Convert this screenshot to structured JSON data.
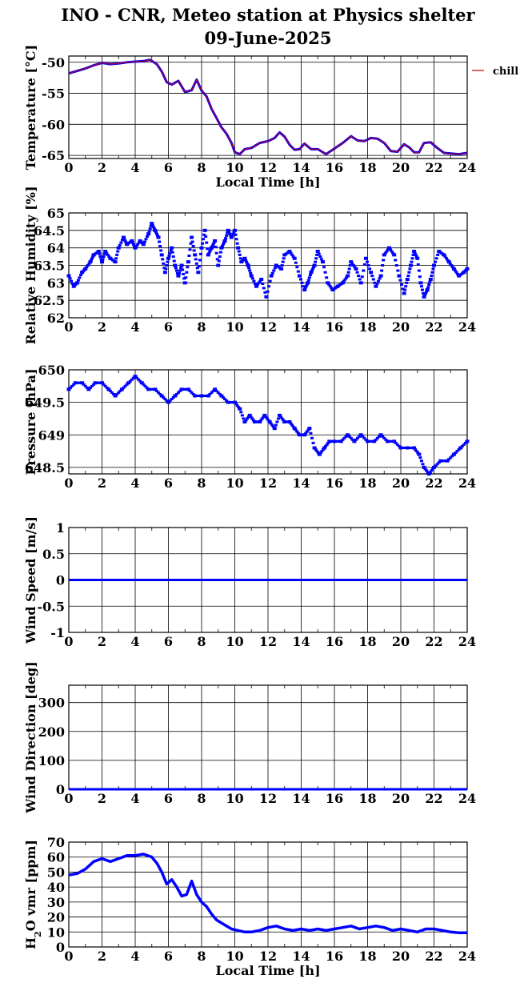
{
  "title": "INO - CNR, Meteo station at Physics shelter",
  "date": "09-June-2025",
  "colors": {
    "series": "#0000ff",
    "chill": "#cc0000",
    "grid": "#000000"
  },
  "chart_data": [
    {
      "type": "line",
      "id": "temperature",
      "ylabel": "Temperature [°C]",
      "xlabel": "Local Time [h]",
      "xlim": [
        0,
        24
      ],
      "ylim": [
        -65.5,
        -49
      ],
      "yticks": [
        -50,
        -55,
        -60,
        -65
      ],
      "xticks": [
        0,
        2,
        4,
        6,
        8,
        10,
        12,
        14,
        16,
        18,
        20,
        22,
        24
      ],
      "legend": "chill",
      "series": [
        {
          "name": "temperature",
          "x": [
            0,
            1,
            1.5,
            2,
            2.5,
            3,
            3.5,
            4,
            4.5,
            4.9,
            5.3,
            5.6,
            5.9,
            6.2,
            6.6,
            7.0,
            7.4,
            7.7,
            8.0,
            8.3,
            8.6,
            8.9,
            9.2,
            9.5,
            9.8,
            10.0,
            10.3,
            10.6,
            11.0,
            11.5,
            12.0,
            12.4,
            12.7,
            13.0,
            13.3,
            13.6,
            13.9,
            14.2,
            14.6,
            15.0,
            15.5,
            16.0,
            16.5,
            17.0,
            17.4,
            17.8,
            18.2,
            18.6,
            19.0,
            19.4,
            19.8,
            20.2,
            20.5,
            20.8,
            21.1,
            21.4,
            21.8,
            22.2,
            22.6,
            23.0,
            23.5,
            24
          ],
          "y": [
            -51.8,
            -51.0,
            -50.5,
            -50.1,
            -50.3,
            -50.2,
            -50.0,
            -49.9,
            -49.8,
            -49.6,
            -50.3,
            -51.5,
            -53.2,
            -53.6,
            -53.0,
            -54.8,
            -54.5,
            -52.8,
            -54.6,
            -55.5,
            -57.5,
            -59.0,
            -60.5,
            -61.5,
            -63.0,
            -64.5,
            -64.8,
            -64.0,
            -63.8,
            -63.0,
            -62.7,
            -62.2,
            -61.3,
            -62.0,
            -63.3,
            -64.1,
            -64.0,
            -63.1,
            -64.0,
            -64.0,
            -64.8,
            -63.9,
            -63.0,
            -61.9,
            -62.6,
            -62.7,
            -62.2,
            -62.3,
            -63.0,
            -64.3,
            -64.4,
            -63.2,
            -63.7,
            -64.5,
            -64.5,
            -63.0,
            -62.9,
            -63.8,
            -64.6,
            -64.7,
            -64.8,
            -64.6
          ]
        }
      ]
    },
    {
      "type": "scatter",
      "id": "humidity",
      "ylabel": "Relative Humidity [%]",
      "xlim": [
        0,
        24
      ],
      "ylim": [
        62,
        65
      ],
      "yticks": [
        62,
        62.5,
        63,
        63.5,
        64,
        64.5,
        65
      ],
      "xticks": [
        0,
        2,
        4,
        6,
        8,
        10,
        12,
        14,
        16,
        18,
        20,
        22,
        24
      ],
      "series": [
        {
          "name": "humidity",
          "x": [
            0,
            0.3,
            0.5,
            0.8,
            1.0,
            1.3,
            1.5,
            1.8,
            2.0,
            2.2,
            2.5,
            2.8,
            3.0,
            3.3,
            3.5,
            3.8,
            4.0,
            4.3,
            4.5,
            4.8,
            5.0,
            5.2,
            5.4,
            5.6,
            5.8,
            6.0,
            6.2,
            6.4,
            6.6,
            6.8,
            7.0,
            7.2,
            7.4,
            7.6,
            7.8,
            8.0,
            8.2,
            8.4,
            8.6,
            8.8,
            9.0,
            9.2,
            9.4,
            9.6,
            9.8,
            10.0,
            10.2,
            10.4,
            10.6,
            10.8,
            11.0,
            11.3,
            11.6,
            11.9,
            12.2,
            12.5,
            12.8,
            13.0,
            13.3,
            13.6,
            13.9,
            14.2,
            14.4,
            14.6,
            14.8,
            15.0,
            15.3,
            15.6,
            15.9,
            16.2,
            16.5,
            16.8,
            17.0,
            17.3,
            17.6,
            17.9,
            18.2,
            18.5,
            18.8,
            19.0,
            19.3,
            19.6,
            19.9,
            20.2,
            20.4,
            20.6,
            20.8,
            21.0,
            21.2,
            21.4,
            21.6,
            21.8,
            22.0,
            22.3,
            22.6,
            22.9,
            23.2,
            23.5,
            23.8,
            24
          ],
          "y": [
            63.2,
            62.9,
            63.0,
            63.3,
            63.4,
            63.6,
            63.8,
            63.9,
            63.6,
            63.9,
            63.7,
            63.6,
            64.0,
            64.3,
            64.1,
            64.2,
            64.0,
            64.2,
            64.1,
            64.4,
            64.7,
            64.5,
            64.3,
            63.8,
            63.3,
            63.7,
            64.0,
            63.5,
            63.2,
            63.5,
            63.0,
            63.6,
            64.3,
            63.8,
            63.3,
            64.0,
            64.5,
            63.8,
            64.0,
            64.2,
            63.5,
            64.0,
            64.2,
            64.5,
            64.3,
            64.5,
            64.0,
            63.6,
            63.7,
            63.5,
            63.2,
            62.9,
            63.1,
            62.6,
            63.2,
            63.5,
            63.4,
            63.8,
            63.9,
            63.7,
            63.2,
            62.8,
            63.0,
            63.3,
            63.5,
            63.9,
            63.6,
            63.0,
            62.8,
            62.9,
            63.0,
            63.2,
            63.6,
            63.4,
            63.0,
            63.7,
            63.3,
            62.9,
            63.2,
            63.8,
            64.0,
            63.8,
            63.2,
            62.7,
            63.1,
            63.5,
            63.9,
            63.7,
            63.0,
            62.6,
            62.8,
            63.1,
            63.5,
            63.9,
            63.8,
            63.6,
            63.4,
            63.2,
            63.3,
            63.4
          ]
        }
      ]
    },
    {
      "type": "scatter",
      "id": "pressure",
      "ylabel": "Pressure [hPa]",
      "xlim": [
        0,
        24
      ],
      "ylim": [
        648.4,
        650
      ],
      "yticks": [
        648.5,
        649,
        649.5,
        650
      ],
      "xticks": [
        0,
        2,
        4,
        6,
        8,
        10,
        12,
        14,
        16,
        18,
        20,
        22,
        24
      ],
      "series": [
        {
          "name": "pressure",
          "x": [
            0,
            0.4,
            0.8,
            1.2,
            1.6,
            2.0,
            2.4,
            2.8,
            3.2,
            3.6,
            4.0,
            4.4,
            4.8,
            5.2,
            5.6,
            6.0,
            6.4,
            6.8,
            7.2,
            7.6,
            8.0,
            8.4,
            8.8,
            9.2,
            9.6,
            10.0,
            10.3,
            10.6,
            10.9,
            11.2,
            11.5,
            11.8,
            12.1,
            12.4,
            12.7,
            13.0,
            13.3,
            13.6,
            13.9,
            14.2,
            14.5,
            14.8,
            15.1,
            15.4,
            15.7,
            16.0,
            16.4,
            16.8,
            17.2,
            17.6,
            18.0,
            18.4,
            18.8,
            19.2,
            19.6,
            20.0,
            20.4,
            20.8,
            21.1,
            21.4,
            21.7,
            22.0,
            22.4,
            22.8,
            23.2,
            23.6,
            24
          ],
          "y": [
            649.7,
            649.8,
            649.8,
            649.7,
            649.8,
            649.8,
            649.7,
            649.6,
            649.7,
            649.8,
            649.9,
            649.8,
            649.7,
            649.7,
            649.6,
            649.5,
            649.6,
            649.7,
            649.7,
            649.6,
            649.6,
            649.6,
            649.7,
            649.6,
            649.5,
            649.5,
            649.4,
            649.2,
            649.3,
            649.2,
            649.2,
            649.3,
            649.2,
            649.1,
            649.3,
            649.2,
            649.2,
            649.1,
            649.0,
            649.0,
            649.1,
            648.8,
            648.7,
            648.8,
            648.9,
            648.9,
            648.9,
            649.0,
            648.9,
            649.0,
            648.9,
            648.9,
            649.0,
            648.9,
            648.9,
            648.8,
            648.8,
            648.8,
            648.7,
            648.5,
            648.4,
            648.5,
            648.6,
            648.6,
            648.7,
            648.8,
            648.9
          ]
        }
      ]
    },
    {
      "type": "line",
      "id": "wind_speed",
      "ylabel": "Wind Speed [m/s]",
      "xlim": [
        0,
        24
      ],
      "ylim": [
        -1,
        1
      ],
      "yticks": [
        -1,
        -0.5,
        0,
        0.5,
        1
      ],
      "xticks": [
        0,
        2,
        4,
        6,
        8,
        10,
        12,
        14,
        16,
        18,
        20,
        22,
        24
      ],
      "series": [
        {
          "name": "wind_speed",
          "x": [
            0,
            24
          ],
          "y": [
            0,
            0
          ]
        }
      ]
    },
    {
      "type": "line",
      "id": "wind_direction",
      "ylabel": "Wind Direction [deg]",
      "xlim": [
        0,
        24
      ],
      "ylim": [
        0,
        360
      ],
      "yticks": [
        0,
        100,
        200,
        300
      ],
      "xticks": [
        0,
        2,
        4,
        6,
        8,
        10,
        12,
        14,
        16,
        18,
        20,
        22,
        24
      ],
      "series": [
        {
          "name": "wind_direction",
          "x": [
            0,
            24
          ],
          "y": [
            0,
            0
          ]
        }
      ]
    },
    {
      "type": "line",
      "id": "h2o_vmr",
      "ylabel_main": "H",
      "ylabel_sub": "2",
      "ylabel_rest": "O vmr [ppm]",
      "xlabel": "Local Time [h]",
      "xlim": [
        0,
        24
      ],
      "ylim": [
        0,
        70
      ],
      "yticks": [
        0,
        10,
        20,
        30,
        40,
        50,
        60,
        70
      ],
      "xticks": [
        0,
        2,
        4,
        6,
        8,
        10,
        12,
        14,
        16,
        18,
        20,
        22,
        24
      ],
      "series": [
        {
          "name": "h2o_vmr",
          "x": [
            0,
            0.5,
            1.0,
            1.5,
            2.0,
            2.5,
            3.0,
            3.5,
            4.0,
            4.5,
            5.0,
            5.3,
            5.6,
            5.9,
            6.2,
            6.5,
            6.8,
            7.1,
            7.4,
            7.7,
            8.0,
            8.3,
            8.6,
            8.9,
            9.2,
            9.5,
            9.8,
            10.2,
            10.6,
            11.0,
            11.5,
            12.0,
            12.5,
            13.0,
            13.5,
            14.0,
            14.5,
            15.0,
            15.5,
            16.0,
            16.5,
            17.0,
            17.5,
            18.0,
            18.5,
            19.0,
            19.5,
            20.0,
            20.5,
            21.0,
            21.5,
            22.0,
            22.5,
            23.0,
            23.5,
            24
          ],
          "y": [
            48,
            49,
            52,
            57,
            59,
            57,
            59,
            61,
            61,
            62,
            60,
            56,
            50,
            42,
            45,
            40,
            34,
            35,
            44,
            35,
            30,
            27,
            22,
            18,
            16,
            14,
            12,
            11,
            10,
            10,
            11,
            13,
            14,
            12,
            11,
            12,
            11,
            12,
            11,
            12,
            13,
            14,
            12,
            13,
            14,
            13,
            11,
            12,
            11,
            10,
            12,
            12,
            11,
            10,
            9.5,
            9.5
          ]
        }
      ]
    }
  ]
}
